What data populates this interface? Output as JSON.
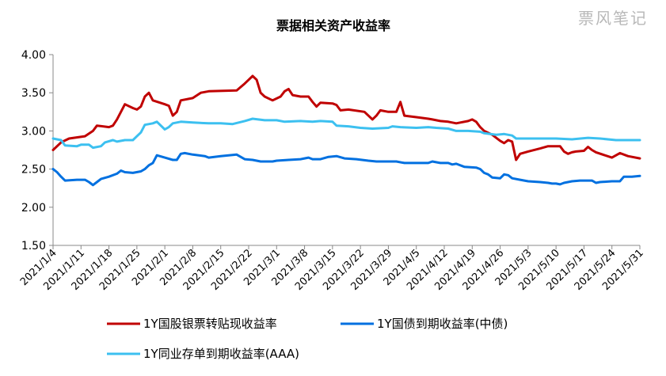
{
  "watermark": "票风笔记",
  "chart_data": {
    "type": "line",
    "title": "票据相关资产收益率",
    "xlabel": "",
    "ylabel": "",
    "ylim": [
      1.5,
      4.0
    ],
    "yticks": [
      "1.50",
      "2.00",
      "2.50",
      "3.00",
      "3.50",
      "4.00"
    ],
    "x_start": "2021/1/4",
    "x_end": "2021/5/31",
    "x_ticks": [
      "2021/1/4",
      "2021/1/11",
      "2021/1/18",
      "2021/1/25",
      "2021/2/1",
      "2021/2/8",
      "2021/2/15",
      "2021/2/22",
      "2021/3/1",
      "2021/3/8",
      "2021/3/15",
      "2021/3/22",
      "2021/3/29",
      "2021/4/5",
      "2021/4/12",
      "2021/4/19",
      "2021/4/26",
      "2021/5/3",
      "2021/5/10",
      "2021/5/17",
      "2021/5/24",
      "2021/5/31"
    ],
    "grid": false,
    "legend_position": "bottom",
    "series": [
      {
        "name": "1Y国股银票转贴现收益率",
        "color": "#c00000",
        "points": [
          [
            "2021/1/4",
            2.75
          ],
          [
            "2021/1/6",
            2.85
          ],
          [
            "2021/1/8",
            2.9
          ],
          [
            "2021/1/12",
            2.93
          ],
          [
            "2021/1/14",
            3.0
          ],
          [
            "2021/1/15",
            3.07
          ],
          [
            "2021/1/18",
            3.05
          ],
          [
            "2021/1/19",
            3.07
          ],
          [
            "2021/1/20",
            3.15
          ],
          [
            "2021/1/22",
            3.35
          ],
          [
            "2021/1/24",
            3.3
          ],
          [
            "2021/1/25",
            3.28
          ],
          [
            "2021/1/26",
            3.32
          ],
          [
            "2021/1/27",
            3.45
          ],
          [
            "2021/1/28",
            3.5
          ],
          [
            "2021/1/29",
            3.4
          ],
          [
            "2021/2/1",
            3.35
          ],
          [
            "2021/2/2",
            3.33
          ],
          [
            "2021/2/3",
            3.2
          ],
          [
            "2021/2/4",
            3.25
          ],
          [
            "2021/2/5",
            3.4
          ],
          [
            "2021/2/8",
            3.43
          ],
          [
            "2021/2/10",
            3.5
          ],
          [
            "2021/2/12",
            3.52
          ],
          [
            "2021/2/19",
            3.53
          ],
          [
            "2021/2/21",
            3.62
          ],
          [
            "2021/2/22",
            3.67
          ],
          [
            "2021/2/23",
            3.72
          ],
          [
            "2021/2/24",
            3.67
          ],
          [
            "2021/2/25",
            3.5
          ],
          [
            "2021/2/26",
            3.45
          ],
          [
            "2021/2/28",
            3.4
          ],
          [
            "2021/3/2",
            3.45
          ],
          [
            "2021/3/3",
            3.52
          ],
          [
            "2021/3/4",
            3.55
          ],
          [
            "2021/3/5",
            3.47
          ],
          [
            "2021/3/7",
            3.45
          ],
          [
            "2021/3/9",
            3.45
          ],
          [
            "2021/3/10",
            3.38
          ],
          [
            "2021/3/11",
            3.32
          ],
          [
            "2021/3/12",
            3.37
          ],
          [
            "2021/3/15",
            3.36
          ],
          [
            "2021/3/16",
            3.34
          ],
          [
            "2021/3/17",
            3.27
          ],
          [
            "2021/3/19",
            3.28
          ],
          [
            "2021/3/23",
            3.25
          ],
          [
            "2021/3/24",
            3.2
          ],
          [
            "2021/3/25",
            3.15
          ],
          [
            "2021/3/26",
            3.2
          ],
          [
            "2021/3/27",
            3.27
          ],
          [
            "2021/3/29",
            3.25
          ],
          [
            "2021/3/31",
            3.25
          ],
          [
            "2021/4/1",
            3.38
          ],
          [
            "2021/4/2",
            3.2
          ],
          [
            "2021/4/5",
            3.18
          ],
          [
            "2021/4/8",
            3.16
          ],
          [
            "2021/4/9",
            3.15
          ],
          [
            "2021/4/11",
            3.13
          ],
          [
            "2021/4/13",
            3.12
          ],
          [
            "2021/4/15",
            3.1
          ],
          [
            "2021/4/18",
            3.13
          ],
          [
            "2021/4/19",
            3.15
          ],
          [
            "2021/4/20",
            3.12
          ],
          [
            "2021/4/21",
            3.05
          ],
          [
            "2021/4/22",
            3.0
          ],
          [
            "2021/4/24",
            2.95
          ],
          [
            "2021/4/26",
            2.87
          ],
          [
            "2021/4/27",
            2.84
          ],
          [
            "2021/4/28",
            2.88
          ],
          [
            "2021/4/29",
            2.86
          ],
          [
            "2021/4/30",
            2.62
          ],
          [
            "2021/5/1",
            2.7
          ],
          [
            "2021/5/3",
            2.73
          ],
          [
            "2021/5/6",
            2.77
          ],
          [
            "2021/5/8",
            2.8
          ],
          [
            "2021/5/11",
            2.8
          ],
          [
            "2021/5/12",
            2.73
          ],
          [
            "2021/5/13",
            2.7
          ],
          [
            "2021/5/14",
            2.72
          ],
          [
            "2021/5/15",
            2.73
          ],
          [
            "2021/5/17",
            2.74
          ],
          [
            "2021/5/18",
            2.79
          ],
          [
            "2021/5/19",
            2.75
          ],
          [
            "2021/5/20",
            2.72
          ],
          [
            "2021/5/24",
            2.65
          ],
          [
            "2021/5/26",
            2.71
          ],
          [
            "2021/5/28",
            2.67
          ],
          [
            "2021/5/31",
            2.64
          ]
        ]
      },
      {
        "name": "1Y国债到期收益率(中债)",
        "color": "#0070e0",
        "points": [
          [
            "2021/1/4",
            2.5
          ],
          [
            "2021/1/5",
            2.46
          ],
          [
            "2021/1/6",
            2.4
          ],
          [
            "2021/1/7",
            2.35
          ],
          [
            "2021/1/10",
            2.36
          ],
          [
            "2021/1/12",
            2.36
          ],
          [
            "2021/1/13",
            2.33
          ],
          [
            "2021/1/14",
            2.29
          ],
          [
            "2021/1/15",
            2.33
          ],
          [
            "2021/1/16",
            2.37
          ],
          [
            "2021/1/18",
            2.4
          ],
          [
            "2021/1/20",
            2.44
          ],
          [
            "2021/1/21",
            2.48
          ],
          [
            "2021/1/22",
            2.46
          ],
          [
            "2021/1/24",
            2.45
          ],
          [
            "2021/1/26",
            2.47
          ],
          [
            "2021/1/27",
            2.5
          ],
          [
            "2021/1/28",
            2.55
          ],
          [
            "2021/1/29",
            2.58
          ],
          [
            "2021/1/30",
            2.68
          ],
          [
            "2021/2/1",
            2.65
          ],
          [
            "2021/2/3",
            2.62
          ],
          [
            "2021/2/4",
            2.62
          ],
          [
            "2021/2/5",
            2.7
          ],
          [
            "2021/2/6",
            2.71
          ],
          [
            "2021/2/8",
            2.69
          ],
          [
            "2021/2/11",
            2.67
          ],
          [
            "2021/2/12",
            2.65
          ],
          [
            "2021/2/15",
            2.67
          ],
          [
            "2021/2/19",
            2.69
          ],
          [
            "2021/2/21",
            2.63
          ],
          [
            "2021/2/23",
            2.62
          ],
          [
            "2021/2/25",
            2.6
          ],
          [
            "2021/2/28",
            2.6
          ],
          [
            "2021/3/1",
            2.61
          ],
          [
            "2021/3/4",
            2.62
          ],
          [
            "2021/3/7",
            2.63
          ],
          [
            "2021/3/9",
            2.65
          ],
          [
            "2021/3/10",
            2.63
          ],
          [
            "2021/3/12",
            2.63
          ],
          [
            "2021/3/14",
            2.66
          ],
          [
            "2021/3/16",
            2.67
          ],
          [
            "2021/3/18",
            2.64
          ],
          [
            "2021/3/21",
            2.63
          ],
          [
            "2021/3/24",
            2.61
          ],
          [
            "2021/3/26",
            2.6
          ],
          [
            "2021/3/29",
            2.6
          ],
          [
            "2021/3/31",
            2.6
          ],
          [
            "2021/4/2",
            2.58
          ],
          [
            "2021/4/5",
            2.58
          ],
          [
            "2021/4/8",
            2.58
          ],
          [
            "2021/4/9",
            2.6
          ],
          [
            "2021/4/11",
            2.58
          ],
          [
            "2021/4/13",
            2.58
          ],
          [
            "2021/4/14",
            2.56
          ],
          [
            "2021/4/15",
            2.57
          ],
          [
            "2021/4/17",
            2.53
          ],
          [
            "2021/4/20",
            2.52
          ],
          [
            "2021/4/21",
            2.5
          ],
          [
            "2021/4/22",
            2.45
          ],
          [
            "2021/4/23",
            2.43
          ],
          [
            "2021/4/24",
            2.39
          ],
          [
            "2021/4/26",
            2.38
          ],
          [
            "2021/4/27",
            2.43
          ],
          [
            "2021/4/28",
            2.42
          ],
          [
            "2021/4/29",
            2.38
          ],
          [
            "2021/5/1",
            2.36
          ],
          [
            "2021/5/3",
            2.34
          ],
          [
            "2021/5/6",
            2.33
          ],
          [
            "2021/5/8",
            2.32
          ],
          [
            "2021/5/9",
            2.31
          ],
          [
            "2021/5/10",
            2.31
          ],
          [
            "2021/5/11",
            2.3
          ],
          [
            "2021/5/12",
            2.32
          ],
          [
            "2021/5/14",
            2.34
          ],
          [
            "2021/5/16",
            2.35
          ],
          [
            "2021/5/19",
            2.35
          ],
          [
            "2021/5/20",
            2.32
          ],
          [
            "2021/5/21",
            2.33
          ],
          [
            "2021/5/24",
            2.34
          ],
          [
            "2021/5/26",
            2.34
          ],
          [
            "2021/5/27",
            2.4
          ],
          [
            "2021/5/29",
            2.4
          ],
          [
            "2021/5/31",
            2.41
          ]
        ]
      },
      {
        "name": "1Y同业存单到期收益率(AAA)",
        "color": "#3cc0f0",
        "points": [
          [
            "2021/1/4",
            2.9
          ],
          [
            "2021/1/6",
            2.88
          ],
          [
            "2021/1/7",
            2.81
          ],
          [
            "2021/1/10",
            2.8
          ],
          [
            "2021/1/11",
            2.82
          ],
          [
            "2021/1/13",
            2.82
          ],
          [
            "2021/1/14",
            2.78
          ],
          [
            "2021/1/16",
            2.8
          ],
          [
            "2021/1/17",
            2.85
          ],
          [
            "2021/1/19",
            2.88
          ],
          [
            "2021/1/20",
            2.86
          ],
          [
            "2021/1/22",
            2.88
          ],
          [
            "2021/1/24",
            2.88
          ],
          [
            "2021/1/25",
            2.93
          ],
          [
            "2021/1/26",
            2.98
          ],
          [
            "2021/1/27",
            3.08
          ],
          [
            "2021/1/29",
            3.1
          ],
          [
            "2021/1/30",
            3.12
          ],
          [
            "2021/2/1",
            3.02
          ],
          [
            "2021/2/2",
            3.05
          ],
          [
            "2021/2/3",
            3.1
          ],
          [
            "2021/2/5",
            3.12
          ],
          [
            "2021/2/8",
            3.11
          ],
          [
            "2021/2/12",
            3.1
          ],
          [
            "2021/2/15",
            3.1
          ],
          [
            "2021/2/18",
            3.09
          ],
          [
            "2021/2/21",
            3.13
          ],
          [
            "2021/2/23",
            3.16
          ],
          [
            "2021/2/26",
            3.14
          ],
          [
            "2021/3/1",
            3.14
          ],
          [
            "2021/3/3",
            3.12
          ],
          [
            "2021/3/7",
            3.13
          ],
          [
            "2021/3/10",
            3.12
          ],
          [
            "2021/3/12",
            3.13
          ],
          [
            "2021/3/15",
            3.12
          ],
          [
            "2021/3/16",
            3.07
          ],
          [
            "2021/3/19",
            3.06
          ],
          [
            "2021/3/22",
            3.04
          ],
          [
            "2021/3/25",
            3.03
          ],
          [
            "2021/3/29",
            3.04
          ],
          [
            "2021/3/30",
            3.06
          ],
          [
            "2021/4/1",
            3.05
          ],
          [
            "2021/4/5",
            3.04
          ],
          [
            "2021/4/8",
            3.05
          ],
          [
            "2021/4/10",
            3.04
          ],
          [
            "2021/4/13",
            3.03
          ],
          [
            "2021/4/15",
            3.0
          ],
          [
            "2021/4/18",
            3.0
          ],
          [
            "2021/4/21",
            2.99
          ],
          [
            "2021/4/22",
            2.97
          ],
          [
            "2021/4/25",
            2.95
          ],
          [
            "2021/4/27",
            2.96
          ],
          [
            "2021/4/29",
            2.94
          ],
          [
            "2021/4/30",
            2.9
          ],
          [
            "2021/5/5",
            2.9
          ],
          [
            "2021/5/10",
            2.9
          ],
          [
            "2021/5/14",
            2.89
          ],
          [
            "2021/5/18",
            2.91
          ],
          [
            "2021/5/21",
            2.9
          ],
          [
            "2021/5/25",
            2.88
          ],
          [
            "2021/5/31",
            2.88
          ]
        ]
      }
    ]
  }
}
